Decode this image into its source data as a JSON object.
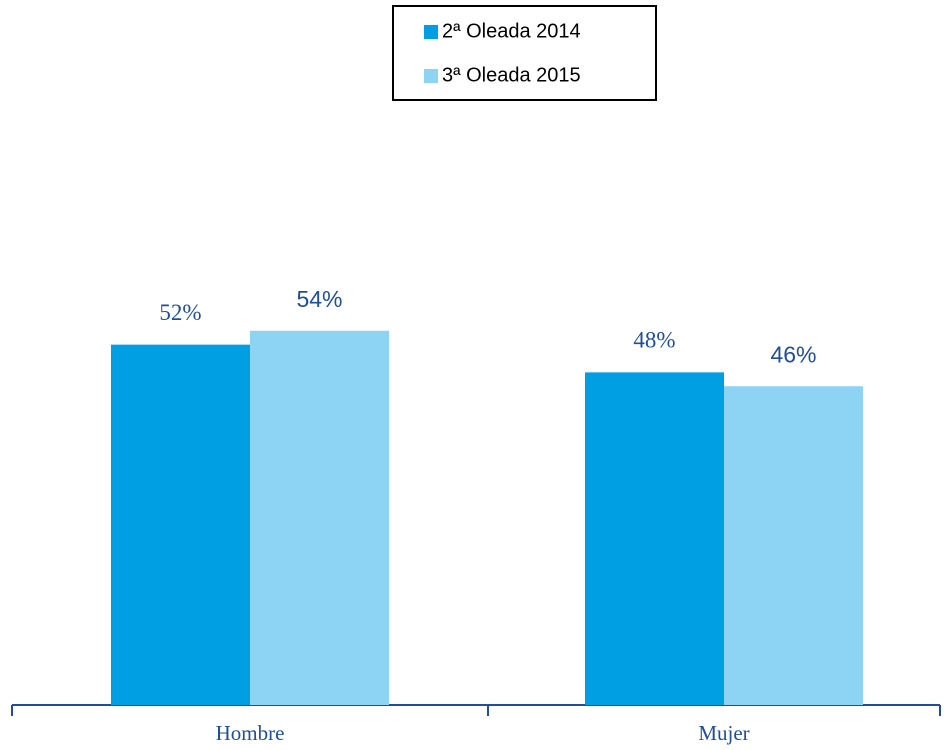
{
  "chart_data": {
    "type": "bar",
    "categories": [
      "Hombre",
      "Mujer"
    ],
    "series": [
      {
        "name": "2ª Oleada 2014",
        "color": "#009fe3",
        "values": [
          52,
          48
        ],
        "value_labels": [
          "52%",
          "48%"
        ]
      },
      {
        "name": "3ª Oleada 2015",
        "color": "#8dd3f3",
        "values": [
          54,
          46
        ],
        "value_labels": [
          "54%",
          "46%"
        ]
      }
    ],
    "ylim": [
      0,
      100
    ],
    "legend": "top"
  }
}
